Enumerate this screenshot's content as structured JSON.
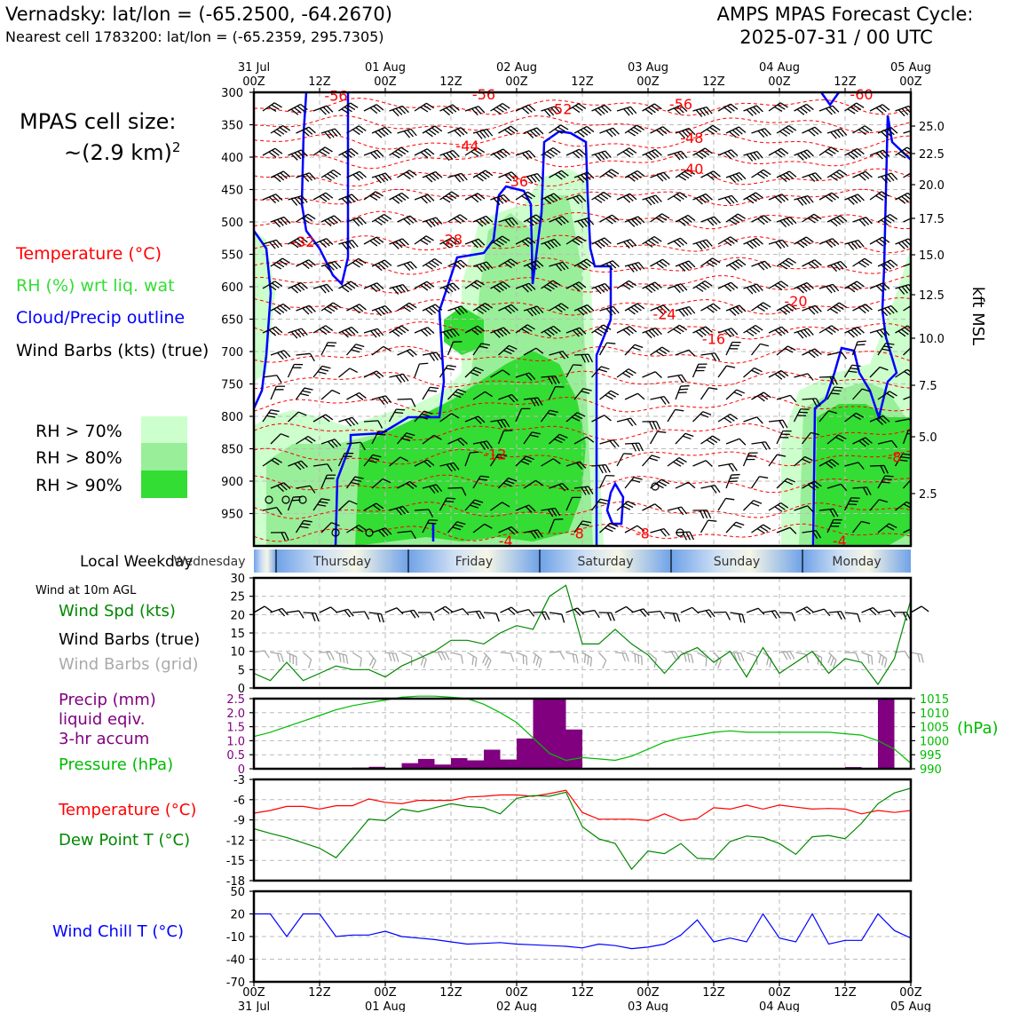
{
  "header": {
    "station_line": "Vernadsky: lat/lon = (-65.2500, -64.2670)",
    "cell_line": "Nearest cell 1783200: lat/lon = (-65.2359, 295.7305)",
    "cycle_title": "AMPS MPAS Forecast Cycle:",
    "cycle_time": "2025-07-31 / 00 UTC"
  },
  "left_panel": {
    "cell_size_label": "MPAS cell size:",
    "cell_size_value": "~(2.9 km)",
    "cell_size_sup": "2",
    "legend": [
      {
        "text": "Temperature (°C)",
        "color": "#ff0000"
      },
      {
        "text": "RH (%) wrt liq. wat",
        "color": "#33dd33"
      },
      {
        "text": "Cloud/Precip outline",
        "color": "#0000ff"
      },
      {
        "text": "Wind Barbs (kts) (true)",
        "color": "#000000"
      }
    ],
    "rh_levels": [
      {
        "text": "RH > 70%",
        "color": "#ccffcc"
      },
      {
        "text": "RH > 80%",
        "color": "#99ee99"
      },
      {
        "text": "RH > 90%",
        "color": "#33dd33"
      }
    ]
  },
  "top_axis": {
    "ticks": [
      {
        "top": "31 Jul",
        "bottom": "00Z"
      },
      {
        "top": "",
        "bottom": "12Z"
      },
      {
        "top": "01 Aug",
        "bottom": "00Z"
      },
      {
        "top": "",
        "bottom": "12Z"
      },
      {
        "top": "02 Aug",
        "bottom": "00Z"
      },
      {
        "top": "",
        "bottom": "12Z"
      },
      {
        "top": "03 Aug",
        "bottom": "00Z"
      },
      {
        "top": "",
        "bottom": "12Z"
      },
      {
        "top": "04 Aug",
        "bottom": "00Z"
      },
      {
        "top": "",
        "bottom": "12Z"
      },
      {
        "top": "05 Aug",
        "bottom": "00Z"
      }
    ]
  },
  "weekday_bar": {
    "label": "Local Weekday",
    "days": [
      "Wednesday",
      "Thursday",
      "Friday",
      "Saturday",
      "Sunday",
      "Monday"
    ]
  },
  "panel_labels": {
    "wind_at_10m": "Wind at 10m AGL",
    "wind_spd": "Wind Spd (kts)",
    "wind_barbs_true": "Wind Barbs (true)",
    "wind_barbs_grid": "Wind Barbs (grid)",
    "precip_1": "Precip (mm)",
    "precip_2": "liquid eqiv.",
    "precip_3": "3-hr accum",
    "pressure": "Pressure (hPa)",
    "pressure_unit": "(hPa)",
    "temperature": "Temperature (°C)",
    "dewpoint": "Dew Point T (°C)",
    "wind_chill": "Wind Chill T (°C)",
    "right_axis_label": "kft MSL"
  },
  "colors": {
    "temperature": "#ff0000",
    "rh_label": "#33dd33",
    "cloud": "#0000ff",
    "wind_spd": "#008800",
    "wind_grid": "#aaaaaa",
    "precip": "#800080",
    "pressure": "#00bb00",
    "dewpoint": "#008800",
    "wind_chill": "#0000ff"
  },
  "chart_data": [
    {
      "type": "heatmap",
      "name_hint": "time-height cross section",
      "y_pressure_ticks": [
        300,
        350,
        400,
        450,
        500,
        550,
        600,
        650,
        700,
        750,
        800,
        850,
        900,
        950
      ],
      "y_kft_ticks": [
        25.0,
        22.5,
        20.0,
        17.5,
        15.0,
        12.5,
        10.0,
        7.5,
        5.0,
        2.5
      ],
      "ylim": [
        1000,
        300
      ],
      "xlim_hours": [
        0,
        120
      ],
      "temperature_contour_labels": [
        {
          "value": "-56",
          "hour": 15,
          "p": 305
        },
        {
          "value": "-56",
          "hour": 42,
          "p": 303
        },
        {
          "value": "-52",
          "hour": 56,
          "p": 325
        },
        {
          "value": "-56",
          "hour": 78,
          "p": 318
        },
        {
          "value": "-60",
          "hour": 111,
          "p": 303
        },
        {
          "value": "-48",
          "hour": 80,
          "p": 370
        },
        {
          "value": "-44",
          "hour": 39,
          "p": 382
        },
        {
          "value": "-40",
          "hour": 80,
          "p": 418
        },
        {
          "value": "-36",
          "hour": 48,
          "p": 437
        },
        {
          "value": "-32",
          "hour": 9,
          "p": 530
        },
        {
          "value": "-28",
          "hour": 36,
          "p": 527
        },
        {
          "value": "-20",
          "hour": 99,
          "p": 622
        },
        {
          "value": "-24",
          "hour": 75,
          "p": 642
        },
        {
          "value": "-16",
          "hour": 84,
          "p": 680
        },
        {
          "value": "-12",
          "hour": 44,
          "p": 858
        },
        {
          "value": "-8",
          "hour": 59,
          "p": 980
        },
        {
          "value": "-8",
          "hour": 71,
          "p": 980
        },
        {
          "value": "-4",
          "hour": 46,
          "p": 992
        },
        {
          "value": "-4",
          "hour": 107,
          "p": 992
        },
        {
          "value": "-8",
          "hour": 117,
          "p": 862
        }
      ]
    },
    {
      "type": "line",
      "title": "Wind Spd (kts)",
      "ylim": [
        0,
        30
      ],
      "yticks": [
        0,
        5,
        10,
        15,
        20,
        25,
        30
      ],
      "x_hours": [
        0,
        3,
        6,
        9,
        12,
        15,
        18,
        21,
        24,
        27,
        30,
        33,
        36,
        39,
        42,
        45,
        48,
        51,
        54,
        57,
        60,
        63,
        66,
        69,
        72,
        75,
        78,
        81,
        84,
        87,
        90,
        93,
        96,
        99,
        102,
        105,
        108,
        111,
        114,
        117,
        120
      ],
      "series": [
        {
          "name": "Wind Spd (kts)",
          "values": [
            4,
            2,
            7,
            2,
            4,
            6,
            5,
            5,
            3,
            6,
            8,
            10,
            13,
            13,
            12,
            15,
            17,
            16,
            25,
            28,
            12,
            12,
            16,
            12,
            9,
            4,
            9,
            11,
            7,
            10,
            3,
            11,
            4,
            7,
            10,
            4,
            8,
            7,
            1,
            8,
            24
          ]
        }
      ]
    },
    {
      "type": "bar",
      "title": "Precip (mm) liquid eqiv. 3-hr accum",
      "ylim": [
        0,
        2.5
      ],
      "yticks": [
        0,
        0.5,
        1.0,
        1.5,
        2.0,
        2.5
      ],
      "x_hours": [
        21,
        24,
        30,
        33,
        36,
        39,
        42,
        45,
        48,
        51,
        54,
        57,
        60,
        111,
        114,
        117
      ],
      "values": [
        0.04,
        0.07,
        0.2,
        0.35,
        0.15,
        0.38,
        0.3,
        0.68,
        0.33,
        1.08,
        2.5,
        2.5,
        1.4,
        0.06,
        0.03,
        2.5
      ]
    },
    {
      "type": "line",
      "title": "Pressure (hPa)",
      "ylim": [
        990,
        1015
      ],
      "yticks": [
        990,
        995,
        1000,
        1005,
        1010,
        1015
      ],
      "x_hours": [
        0,
        3,
        6,
        9,
        12,
        15,
        18,
        21,
        24,
        27,
        30,
        33,
        36,
        39,
        42,
        45,
        48,
        51,
        54,
        57,
        60,
        63,
        66,
        69,
        72,
        75,
        78,
        81,
        84,
        87,
        90,
        93,
        96,
        99,
        102,
        105,
        108,
        111,
        114,
        117,
        120
      ],
      "series": [
        {
          "name": "Pressure",
          "values": [
            1001.5,
            1003,
            1005,
            1007,
            1009,
            1011,
            1012.5,
            1013.5,
            1014.5,
            1015.5,
            1016,
            1016,
            1015.5,
            1015,
            1013,
            1010,
            1006.5,
            1001,
            995.5,
            993,
            994,
            993.5,
            993,
            994.5,
            997,
            999.5,
            1001,
            1002,
            1003,
            1003.5,
            1003,
            1003,
            1003,
            1003,
            1003,
            1003,
            1002.5,
            1002,
            1000,
            997,
            992
          ]
        }
      ]
    },
    {
      "type": "line",
      "title": "Temperature / Dew Point",
      "ylim": [
        -18,
        -3
      ],
      "yticks": [
        -18,
        -15,
        -12,
        -9,
        -6,
        -3
      ],
      "x_hours": [
        0,
        3,
        6,
        9,
        12,
        15,
        18,
        21,
        24,
        27,
        30,
        33,
        36,
        39,
        42,
        45,
        48,
        51,
        54,
        57,
        60,
        63,
        66,
        69,
        72,
        75,
        78,
        81,
        84,
        87,
        90,
        93,
        96,
        99,
        102,
        105,
        108,
        111,
        114,
        117,
        120
      ],
      "series": [
        {
          "name": "Temperature (°C)",
          "values": [
            -8,
            -7.6,
            -7,
            -7,
            -7.4,
            -6.9,
            -6.9,
            -5.9,
            -6.4,
            -6.6,
            -6.1,
            -6.1,
            -6.1,
            -5.6,
            -5.5,
            -5.3,
            -5.3,
            -5.5,
            -5.1,
            -4.6,
            -7.9,
            -8.9,
            -8.9,
            -8.9,
            -9.1,
            -8.1,
            -9.1,
            -8.8,
            -7.2,
            -7.4,
            -6.8,
            -7.4,
            -6.8,
            -7.1,
            -7.4,
            -7.3,
            -7.4,
            -8.1,
            -7.6,
            -7.9,
            -7.6
          ]
        },
        {
          "name": "Dew Point T (°C)",
          "values": [
            -10.3,
            -11,
            -11.6,
            -12.4,
            -13.2,
            -14.6,
            -11.8,
            -8.9,
            -9.1,
            -7.4,
            -7.8,
            -7.2,
            -6.6,
            -7,
            -7.2,
            -8.1,
            -5.8,
            -5.4,
            -5.5,
            -4.9,
            -10,
            -11.8,
            -12.5,
            -16.3,
            -13.6,
            -14,
            -12.5,
            -14.7,
            -14.8,
            -12.2,
            -11.4,
            -11.6,
            -12.5,
            -14.1,
            -11.5,
            -11.3,
            -11.8,
            -9.5,
            -6.6,
            -5,
            -4.3
          ]
        }
      ]
    },
    {
      "type": "line",
      "title": "Wind Chill T (°C)",
      "ylim": [
        -70,
        50
      ],
      "yticks": [
        -70,
        -40,
        -10,
        20,
        50
      ],
      "x_hours": [
        0,
        3,
        6,
        9,
        12,
        15,
        18,
        21,
        24,
        27,
        30,
        33,
        36,
        39,
        42,
        45,
        48,
        51,
        54,
        57,
        60,
        63,
        66,
        69,
        72,
        75,
        78,
        81,
        84,
        87,
        90,
        93,
        96,
        99,
        102,
        105,
        108,
        111,
        114,
        117,
        120
      ],
      "series": [
        {
          "name": "Wind Chill T (°C)",
          "values": [
            20,
            20,
            -10,
            20,
            20,
            -10,
            -8,
            -8,
            -3,
            -10,
            -12,
            -14,
            -17,
            -20,
            -19,
            -18,
            -20,
            -21,
            -22,
            -23,
            -25,
            -20,
            -22,
            -26,
            -24,
            -20,
            -8,
            12,
            -17,
            -12,
            -17,
            20,
            -12,
            -17,
            20,
            -20,
            -15,
            -15,
            20,
            -2,
            -12
          ]
        }
      ]
    }
  ]
}
